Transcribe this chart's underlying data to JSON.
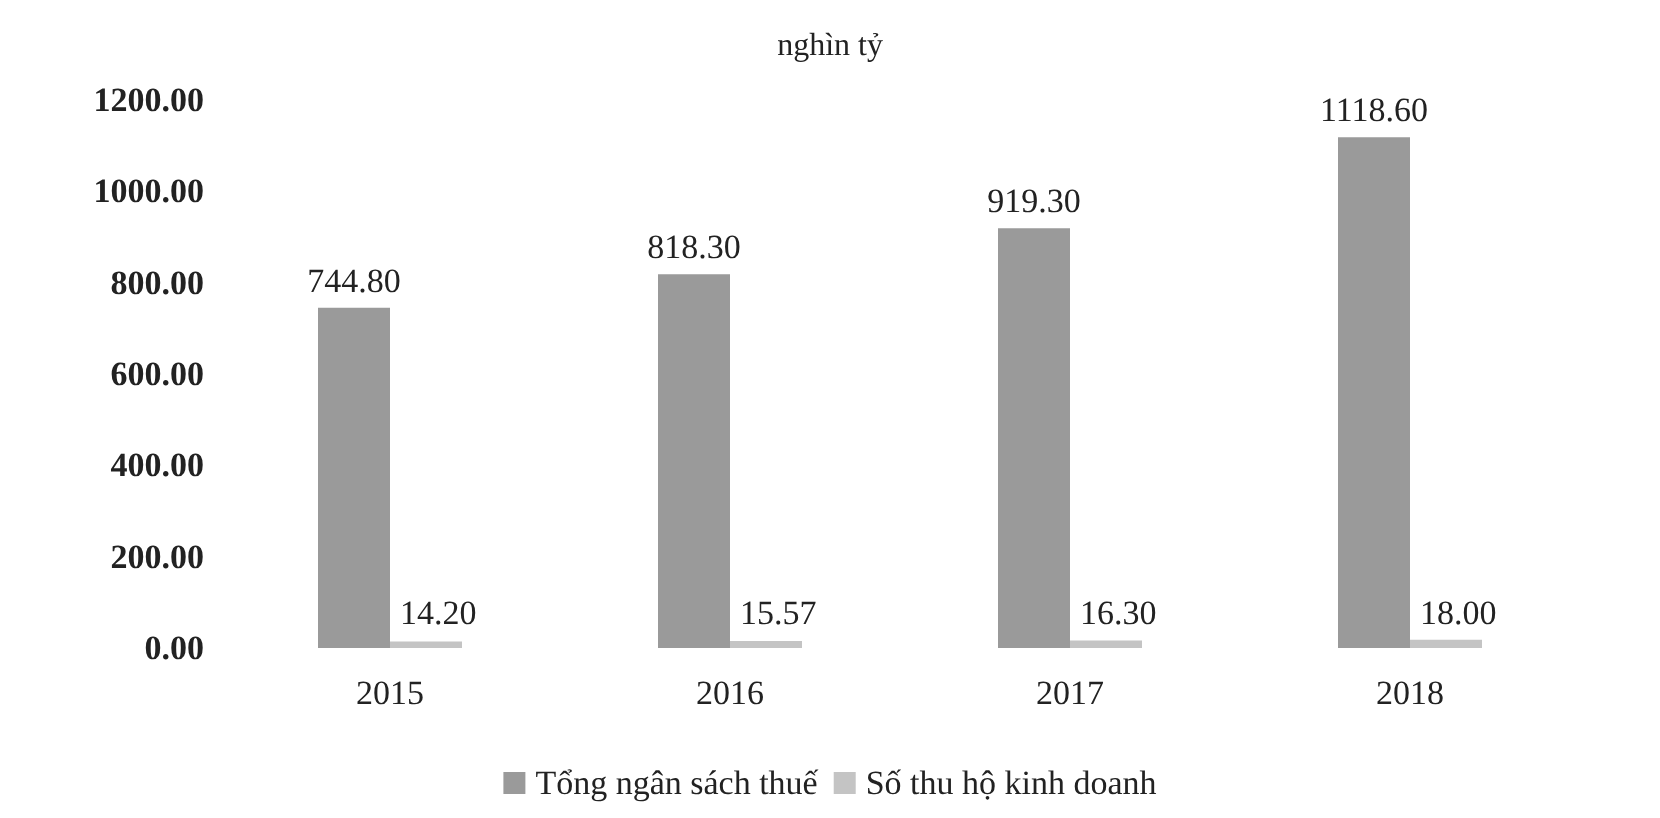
{
  "chart_data": {
    "type": "bar",
    "title": "nghìn tỷ",
    "categories": [
      "2015",
      "2016",
      "2017",
      "2018"
    ],
    "series": [
      {
        "name": "Tổng ngân sách thuế",
        "color": "#9a9a9a",
        "values": [
          744.8,
          818.3,
          919.3,
          1118.6
        ],
        "value_labels": [
          "744.80",
          "818.30",
          "919.30",
          "1118.60"
        ]
      },
      {
        "name": "Số thu hộ kinh doanh",
        "color": "#c4c4c4",
        "values": [
          14.2,
          15.57,
          16.3,
          18.0
        ],
        "value_labels": [
          "14.20",
          "15.57",
          "16.30",
          "18.00"
        ]
      }
    ],
    "ylim": [
      0,
      1200
    ],
    "yticks": [
      {
        "value": 0,
        "label": "0.00"
      },
      {
        "value": 200,
        "label": "200.00"
      },
      {
        "value": 400,
        "label": "400.00"
      },
      {
        "value": 600,
        "label": "600.00"
      },
      {
        "value": 800,
        "label": "800.00"
      },
      {
        "value": 1000,
        "label": "1000.00"
      },
      {
        "value": 1200,
        "label": "1200.00"
      }
    ],
    "grid": false,
    "legend": "bottom"
  }
}
